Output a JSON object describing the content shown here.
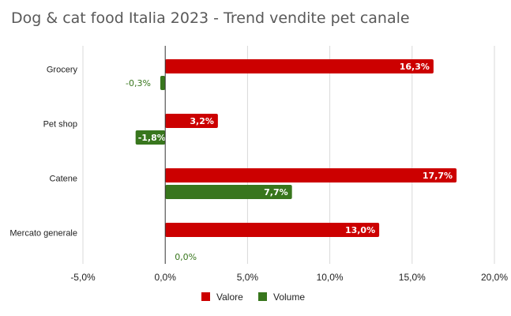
{
  "chart_data": {
    "type": "bar",
    "orientation": "horizontal",
    "title": "Dog & cat food Italia 2023 - Trend vendite pet canale",
    "categories": [
      "Grocery",
      "Pet shop",
      "Catene",
      "Mercato generale"
    ],
    "series": [
      {
        "name": "Valore",
        "color": "#cc0000",
        "values": [
          16.3,
          3.2,
          17.7,
          13.0
        ],
        "labels": [
          "16,3%",
          "3,2%",
          "17,7%",
          "13,0%"
        ]
      },
      {
        "name": "Volume",
        "color": "#38761d",
        "values": [
          -0.3,
          -1.8,
          7.7,
          0.0
        ],
        "labels": [
          "-0,3%",
          "-1,8%",
          "7,7%",
          "0,0%"
        ]
      }
    ],
    "xlim": [
      -5,
      20
    ],
    "xticks": [
      -5,
      0,
      5,
      10,
      15,
      20
    ],
    "xtick_labels": [
      "-5,0%",
      "0,0%",
      "5,0%",
      "10,0%",
      "15,0%",
      "20,0%"
    ],
    "grid": true,
    "legend_position": "bottom"
  }
}
